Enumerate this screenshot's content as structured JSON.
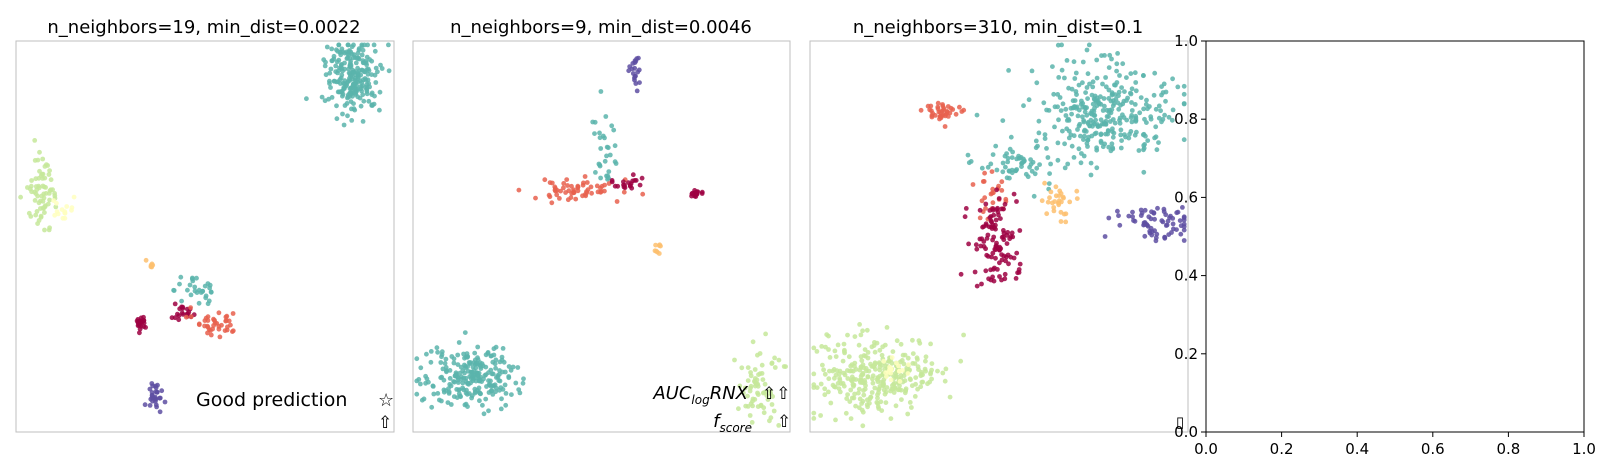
{
  "chart_data": [
    {
      "type": "scatter",
      "title": "n_neighbors=19, min_dist=0.0022",
      "annotations": [
        {
          "text": "Good prediction"
        },
        {
          "text": "☆"
        },
        {
          "text": "⇧"
        }
      ],
      "clusters": [
        {
          "color": "#5ab4ac",
          "n": 240,
          "cx": 0.89,
          "cy": 0.09,
          "sx": 0.035,
          "sy": 0.05
        },
        {
          "color": "#c6e89a",
          "n": 70,
          "cx": 0.07,
          "cy": 0.39,
          "sx": 0.02,
          "sy": 0.04
        },
        {
          "color": "#ffffbf",
          "n": 15,
          "cx": 0.12,
          "cy": 0.43,
          "sx": 0.015,
          "sy": 0.012
        },
        {
          "color": "#fdbf6f",
          "n": 6,
          "cx": 0.36,
          "cy": 0.57,
          "sx": 0.008,
          "sy": 0.005
        },
        {
          "color": "#5ab4ac",
          "n": 30,
          "cx": 0.48,
          "cy": 0.64,
          "sx": 0.03,
          "sy": 0.03
        },
        {
          "color": "#9e0142",
          "n": 25,
          "cx": 0.33,
          "cy": 0.72,
          "sx": 0.008,
          "sy": 0.008
        },
        {
          "color": "#9e0142",
          "n": 20,
          "cx": 0.44,
          "cy": 0.69,
          "sx": 0.02,
          "sy": 0.012
        },
        {
          "color": "#e8604d",
          "n": 40,
          "cx": 0.53,
          "cy": 0.72,
          "sx": 0.03,
          "sy": 0.015
        },
        {
          "color": "#5e4fa2",
          "n": 30,
          "cx": 0.37,
          "cy": 0.91,
          "sx": 0.01,
          "sy": 0.02
        }
      ]
    },
    {
      "type": "scatter",
      "title": "n_neighbors=9, min_dist=0.0046",
      "annotations": [
        {
          "text": "AUC"
        },
        {
          "text": "log"
        },
        {
          "text": "RNX"
        },
        {
          "text": "⇧⇧"
        },
        {
          "text": "f"
        },
        {
          "text": "score"
        },
        {
          "text": "⇧"
        }
      ],
      "clusters": [
        {
          "color": "#5e4fa2",
          "n": 20,
          "cx": 0.59,
          "cy": 0.08,
          "sx": 0.008,
          "sy": 0.02
        },
        {
          "color": "#5ab4ac",
          "n": 30,
          "cx": 0.51,
          "cy": 0.29,
          "sx": 0.02,
          "sy": 0.04
        },
        {
          "color": "#e8604d",
          "n": 60,
          "cx": 0.42,
          "cy": 0.38,
          "sx": 0.06,
          "sy": 0.015
        },
        {
          "color": "#9e0142",
          "n": 20,
          "cx": 0.57,
          "cy": 0.36,
          "sx": 0.02,
          "sy": 0.01
        },
        {
          "color": "#9e0142",
          "n": 20,
          "cx": 0.75,
          "cy": 0.39,
          "sx": 0.01,
          "sy": 0.008
        },
        {
          "color": "#fdbf6f",
          "n": 8,
          "cx": 0.65,
          "cy": 0.53,
          "sx": 0.008,
          "sy": 0.01
        },
        {
          "color": "#5ab4ac",
          "n": 240,
          "cx": 0.15,
          "cy": 0.86,
          "sx": 0.06,
          "sy": 0.04
        },
        {
          "color": "#c6e89a",
          "n": 70,
          "cx": 0.92,
          "cy": 0.88,
          "sx": 0.03,
          "sy": 0.05
        }
      ]
    },
    {
      "type": "scatter",
      "title": "n_neighbors=310, min_dist=0.1",
      "annotations": [],
      "clusters": [
        {
          "color": "#5ab4ac",
          "n": 320,
          "cx": 0.78,
          "cy": 0.18,
          "sx": 0.09,
          "sy": 0.06
        },
        {
          "color": "#5ab4ac",
          "n": 60,
          "cx": 0.55,
          "cy": 0.31,
          "sx": 0.05,
          "sy": 0.03
        },
        {
          "color": "#e8604d",
          "n": 40,
          "cx": 0.35,
          "cy": 0.18,
          "sx": 0.025,
          "sy": 0.015
        },
        {
          "color": "#e8604d",
          "n": 25,
          "cx": 0.48,
          "cy": 0.39,
          "sx": 0.02,
          "sy": 0.025
        },
        {
          "color": "#9e0142",
          "n": 110,
          "cx": 0.49,
          "cy": 0.52,
          "sx": 0.03,
          "sy": 0.06
        },
        {
          "color": "#fdbf6f",
          "n": 30,
          "cx": 0.65,
          "cy": 0.41,
          "sx": 0.02,
          "sy": 0.025
        },
        {
          "color": "#5e4fa2",
          "n": 70,
          "cx": 0.91,
          "cy": 0.46,
          "sx": 0.05,
          "sy": 0.025
        },
        {
          "color": "#c6e89a",
          "n": 320,
          "cx": 0.18,
          "cy": 0.86,
          "sx": 0.08,
          "sy": 0.05
        },
        {
          "color": "#ffffbf",
          "n": 20,
          "cx": 0.22,
          "cy": 0.84,
          "sx": 0.03,
          "sy": 0.02
        }
      ]
    },
    {
      "type": "scatter",
      "title": "",
      "xlim": [
        0.0,
        1.0
      ],
      "ylim": [
        0.0,
        1.0
      ],
      "xticks": [
        "0.0",
        "0.2",
        "0.4",
        "0.6",
        "0.8",
        "1.0"
      ],
      "yticks": [
        "0.0",
        "0.2",
        "0.4",
        "0.6",
        "0.8",
        "1.0"
      ],
      "annotations": [
        {
          "text": "▯"
        }
      ]
    }
  ]
}
